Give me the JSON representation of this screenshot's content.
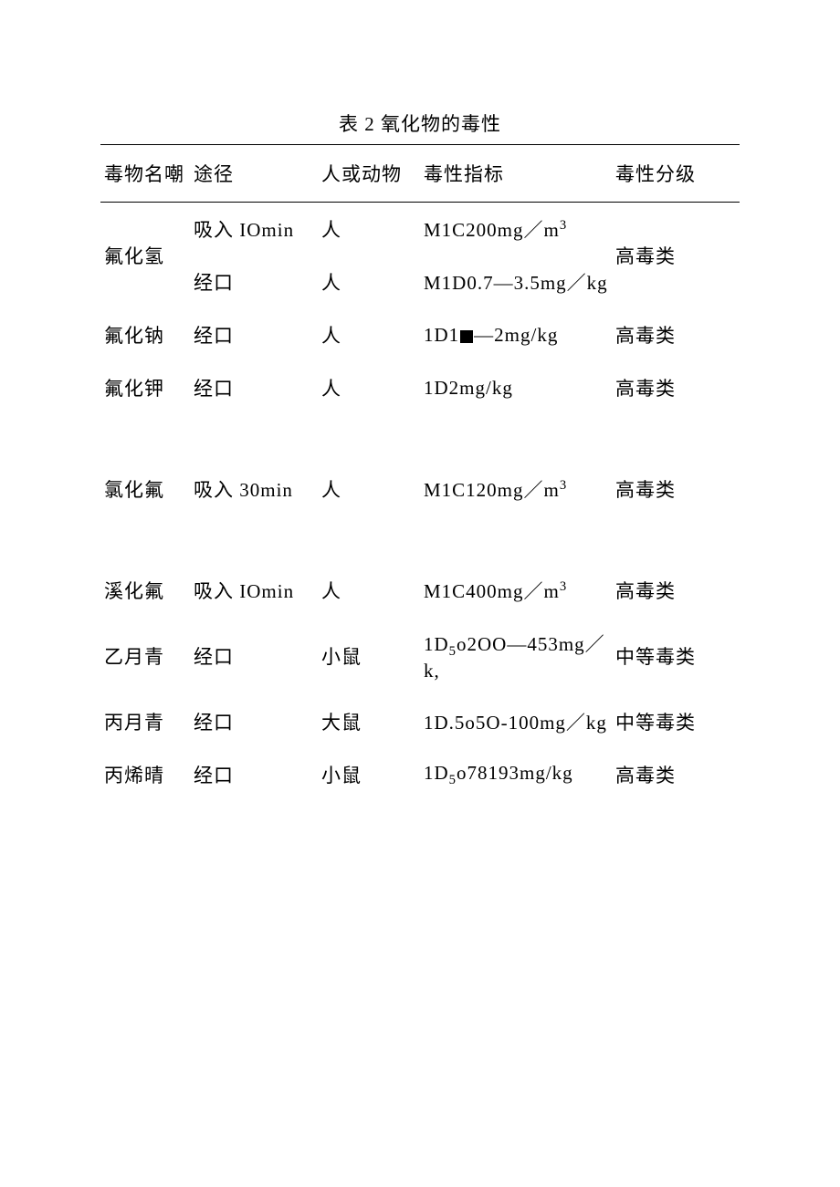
{
  "title": "表 2 氧化物的毒性",
  "headers": {
    "name": "毒物名嘲",
    "route": "途径",
    "subject": "人或动物",
    "indicator": "毒性指标",
    "level": "毒性分级"
  },
  "rows": [
    {
      "name": "氟化氢",
      "name_rowspan": 2,
      "route": "吸入 IOmin",
      "subject": "人",
      "indicator_html": "M1C200mg／m<sup>3</sup>",
      "level": "高毒类",
      "level_rowspan": 2
    },
    {
      "route": "经口",
      "subject": "人",
      "indicator_html": "M1D0.7—3.5mg／kg"
    },
    {
      "name": "氟化钠",
      "route": "经口",
      "subject": "人",
      "indicator_html": "1D1<span class=\"blackbox\"></span>—2mg/kg",
      "level": "高毒类"
    },
    {
      "name": "氟化钾",
      "route": "经口",
      "subject": "人",
      "indicator_html": "1D2mg/kg",
      "level": "高毒类"
    },
    {
      "spacer": true
    },
    {
      "name": "氯化氟",
      "route": "吸入 30min",
      "subject": "人",
      "indicator_html": "M1C120mg／m<sup>3</sup>",
      "level": "高毒类"
    },
    {
      "spacer": true
    },
    {
      "name": "溪化氟",
      "route": "吸入 IOmin",
      "subject": "人",
      "indicator_html": "M1C400mg／m<sup>3</sup>",
      "level": "高毒类"
    },
    {
      "name": "乙月青",
      "route": "经口",
      "subject": "小鼠",
      "indicator_html": "1D<sub>5</sub>o2OO—453mg／k,",
      "level": "中等毒类"
    },
    {
      "name": "丙月青",
      "route": "经口",
      "subject": "大鼠",
      "indicator_html": "1D.5o5O-100mg／kg",
      "level": "中等毒类"
    },
    {
      "name": "丙烯晴",
      "route": "经口",
      "subject": "小鼠",
      "indicator_html": "1D<sub>5</sub>o78193mg/kg",
      "level": "高毒类"
    }
  ]
}
